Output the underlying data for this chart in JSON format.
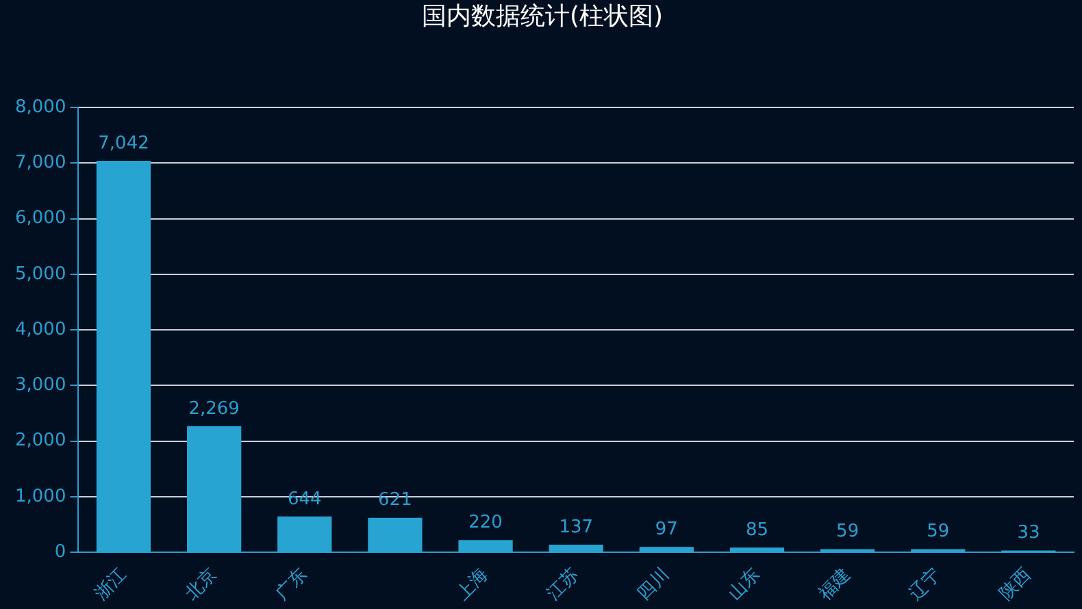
{
  "chart_data": {
    "type": "bar",
    "title": "国内数据统计(柱状图)",
    "categories": [
      "浙江",
      "北京",
      "广东",
      null,
      "上海",
      "江苏",
      "四川",
      "山东",
      "福建",
      "辽宁",
      "陕西"
    ],
    "values": [
      7042,
      2269,
      644,
      621,
      220,
      137,
      97,
      85,
      59,
      59,
      33
    ],
    "value_labels": [
      "7,042",
      "2,269",
      "644",
      "621",
      "220",
      "137",
      "97",
      "85",
      "59",
      "59",
      "33"
    ],
    "color": "#27a4d2",
    "ylim": [
      0,
      8000
    ],
    "yticks": [
      0,
      {
        "value": 1000,
        "label": "1,000"
      },
      {
        "value": 2000,
        "label": "2,000"
      },
      {
        "value": 3000,
        "label": "3,000"
      },
      {
        "value": 4000,
        "label": "4,000"
      },
      {
        "value": 5000,
        "label": "5,000"
      },
      {
        "value": 6000,
        "label": "6,000"
      },
      {
        "value": 7000,
        "label": "7,000"
      },
      {
        "value": 8000,
        "label": "8,000"
      }
    ],
    "grid": "y",
    "legend": false
  }
}
